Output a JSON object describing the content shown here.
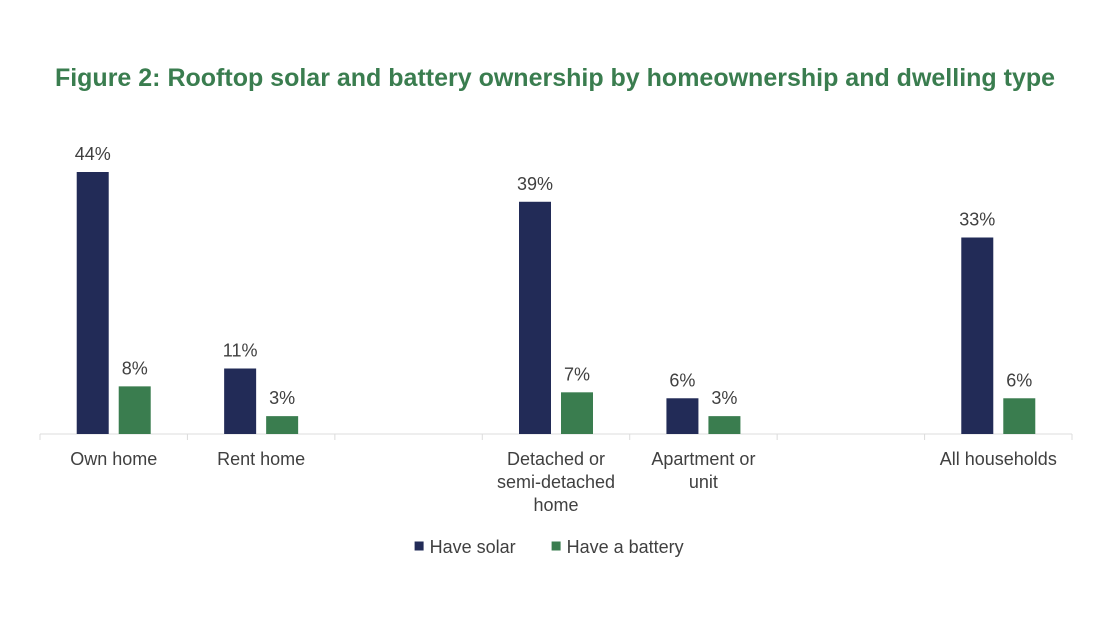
{
  "chart_data": {
    "type": "bar",
    "title": "Figure 2: Rooftop solar and battery ownership by homeownership and dwelling type",
    "categories": [
      [
        "Own home"
      ],
      [
        "Rent home"
      ],
      [],
      [
        "Detached or",
        "semi-detached",
        "home"
      ],
      [
        "Apartment or",
        "unit"
      ],
      [],
      [
        "All households"
      ]
    ],
    "series": [
      {
        "name": "Have solar",
        "color": "#222b57",
        "values": [
          44,
          11,
          null,
          39,
          6,
          null,
          33
        ],
        "labels": [
          "44%",
          "11%",
          "",
          "39%",
          "6%",
          "",
          "33%"
        ]
      },
      {
        "name": "Have a battery",
        "color": "#3a7d4f",
        "values": [
          8,
          3,
          null,
          7,
          3,
          null,
          6
        ],
        "labels": [
          "8%",
          "3%",
          "",
          "7%",
          "3%",
          "",
          "6%"
        ]
      }
    ],
    "ylim": [
      0,
      44
    ],
    "grid": false,
    "legend_position": "bottom"
  }
}
